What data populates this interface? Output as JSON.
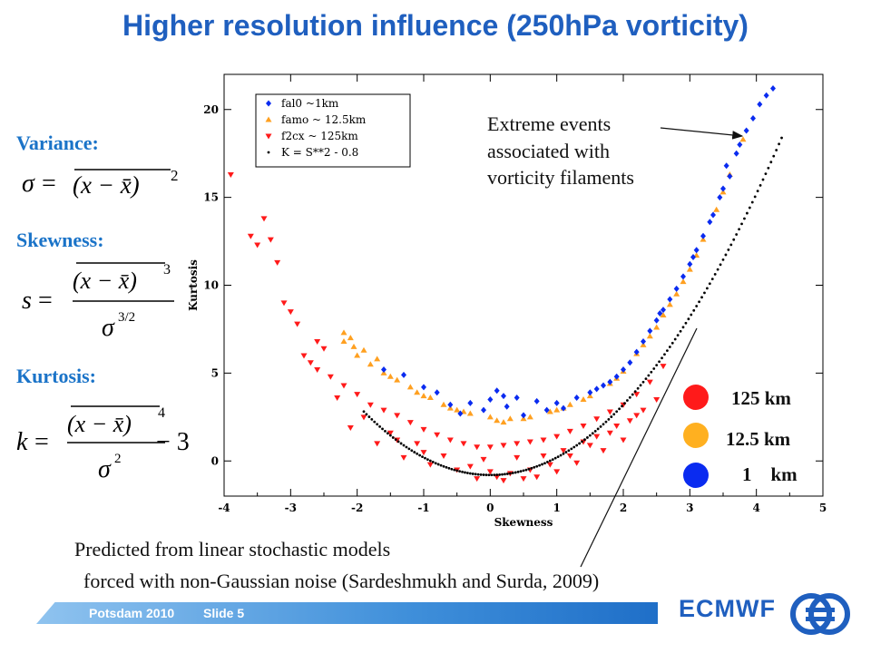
{
  "slide": {
    "title": "Higher resolution influence (250hPa vorticity)",
    "variance_label": "Variance:",
    "skewness_label": "Skewness:",
    "kurtosis_label": "Kurtosis:",
    "formulas": {
      "variance": {
        "lhs": "σ",
        "eq": "=",
        "body": "(x − x̄)",
        "exp": "2"
      },
      "skewness": {
        "lhs": "s",
        "eq": "=",
        "num": "(x − x̄)",
        "num_exp": "3",
        "den": "σ",
        "den_exp": "3/2"
      },
      "kurtosis": {
        "lhs": "k",
        "eq": "=",
        "num": "(x − x̄)",
        "num_exp": "4",
        "den": "σ",
        "den_exp": "2",
        "tail": "− 3"
      }
    },
    "annotation": [
      "Extreme events",
      "associated with",
      "vorticity filaments"
    ],
    "prediction": [
      "Predicted from linear stochastic models",
      "forced with non-Gaussian noise (Sardeshmukh and Surda, 2009)"
    ],
    "resolution_legend": [
      {
        "label": "125 km",
        "color": "#ff1a1a"
      },
      {
        "label": "12.5 km",
        "color": "#ffb020"
      },
      {
        "label": "1    km",
        "color": "#0a2bf0"
      }
    ],
    "footer": {
      "left": "Potsdam 2010",
      "right": "Slide 5",
      "logo": "ECMWF"
    },
    "colors": {
      "title": "#1f5fbf",
      "labels": "#1a73c8"
    }
  },
  "chart_data": {
    "type": "scatter",
    "xlabel": "Skewness",
    "ylabel": "Kurtosis",
    "xlim": [
      -4,
      5
    ],
    "ylim": [
      -2,
      22
    ],
    "xticks": [
      -4,
      -3,
      -2,
      -1,
      0,
      1,
      2,
      3,
      4,
      5
    ],
    "yticks": [
      0,
      5,
      10,
      15,
      20
    ],
    "legend_position": "top-left",
    "series": [
      {
        "name": "fal0 ~1km",
        "color": "#0a2bf0",
        "marker": "diamond",
        "points": [
          [
            4.25,
            21.2
          ],
          [
            4.05,
            20.3
          ],
          [
            3.85,
            18.8
          ],
          [
            3.7,
            17.5
          ],
          [
            3.6,
            16.2
          ],
          [
            3.45,
            15.0
          ],
          [
            3.3,
            13.6
          ],
          [
            3.1,
            12.0
          ],
          [
            2.9,
            10.5
          ],
          [
            2.7,
            9.2
          ],
          [
            2.5,
            8.0
          ],
          [
            2.3,
            6.8
          ],
          [
            2.1,
            5.6
          ],
          [
            1.9,
            4.8
          ],
          [
            1.6,
            4.1
          ],
          [
            1.3,
            3.6
          ],
          [
            1.0,
            3.3
          ],
          [
            0.7,
            3.4
          ],
          [
            0.4,
            3.6
          ],
          [
            0.2,
            3.7
          ],
          [
            0.0,
            3.5
          ],
          [
            -0.3,
            3.3
          ],
          [
            -0.6,
            3.2
          ],
          [
            -1.0,
            4.2
          ],
          [
            -1.3,
            4.9
          ],
          [
            -1.6,
            5.2
          ],
          [
            3.95,
            19.5
          ],
          [
            3.75,
            18.0
          ],
          [
            3.5,
            15.5
          ],
          [
            3.2,
            12.8
          ],
          [
            3.0,
            11.2
          ],
          [
            2.6,
            8.6
          ],
          [
            2.4,
            7.4
          ],
          [
            2.0,
            5.2
          ],
          [
            1.8,
            4.5
          ],
          [
            1.1,
            3.0
          ],
          [
            0.5,
            2.6
          ],
          [
            -0.1,
            2.9
          ],
          [
            -0.8,
            3.9
          ],
          [
            3.35,
            14.0
          ],
          [
            2.8,
            9.8
          ],
          [
            2.2,
            6.2
          ],
          [
            1.5,
            3.9
          ],
          [
            0.85,
            2.9
          ],
          [
            0.25,
            3.1
          ],
          [
            -0.45,
            2.7
          ],
          [
            4.15,
            20.8
          ],
          [
            3.55,
            16.8
          ],
          [
            3.05,
            11.6
          ],
          [
            2.55,
            8.4
          ],
          [
            1.7,
            4.3
          ],
          [
            0.1,
            4.0
          ]
        ]
      },
      {
        "name": "famo ~ 12.5km",
        "color": "#ffa020",
        "marker": "triangle",
        "points": [
          [
            3.8,
            18.3
          ],
          [
            3.5,
            15.3
          ],
          [
            3.2,
            12.6
          ],
          [
            3.0,
            10.9
          ],
          [
            2.8,
            9.5
          ],
          [
            2.6,
            8.3
          ],
          [
            2.4,
            7.1
          ],
          [
            2.2,
            6.1
          ],
          [
            2.0,
            5.1
          ],
          [
            1.8,
            4.4
          ],
          [
            1.5,
            3.7
          ],
          [
            1.2,
            3.2
          ],
          [
            0.9,
            2.8
          ],
          [
            0.6,
            2.5
          ],
          [
            0.3,
            2.4
          ],
          [
            0.0,
            2.5
          ],
          [
            -0.3,
            2.7
          ],
          [
            -0.6,
            3.0
          ],
          [
            -0.9,
            3.6
          ],
          [
            -1.2,
            4.2
          ],
          [
            -1.5,
            4.8
          ],
          [
            -1.8,
            5.5
          ],
          [
            -2.0,
            6.0
          ],
          [
            -2.2,
            6.8
          ],
          [
            -2.1,
            7.0
          ],
          [
            -1.9,
            6.3
          ],
          [
            -1.7,
            5.8
          ],
          [
            -1.4,
            4.6
          ],
          [
            -1.1,
            3.9
          ],
          [
            -0.7,
            3.2
          ],
          [
            -0.4,
            2.8
          ],
          [
            0.1,
            2.3
          ],
          [
            0.5,
            2.4
          ],
          [
            1.0,
            2.9
          ],
          [
            1.4,
            3.5
          ],
          [
            2.3,
            6.6
          ],
          [
            2.7,
            8.9
          ],
          [
            3.1,
            11.7
          ],
          [
            3.4,
            14.3
          ],
          [
            3.6,
            16.3
          ],
          [
            -2.2,
            7.3
          ],
          [
            -2.05,
            6.5
          ],
          [
            -1.6,
            5.0
          ],
          [
            2.9,
            10.2
          ],
          [
            2.5,
            7.6
          ],
          [
            1.9,
            4.7
          ],
          [
            1.1,
            3.0
          ],
          [
            0.2,
            2.2
          ],
          [
            -0.5,
            2.9
          ],
          [
            -1.0,
            3.7
          ]
        ]
      },
      {
        "name": "f2cx ~ 125km",
        "color": "#ff1a1a",
        "marker": "triangle-down",
        "points": [
          [
            -3.9,
            16.3
          ],
          [
            -3.4,
            13.8
          ],
          [
            -3.3,
            12.6
          ],
          [
            -3.5,
            12.3
          ],
          [
            -3.2,
            11.3
          ],
          [
            -3.1,
            9.0
          ],
          [
            -2.9,
            7.8
          ],
          [
            -3.0,
            8.5
          ],
          [
            -2.8,
            6.0
          ],
          [
            -2.6,
            5.2
          ],
          [
            -2.4,
            4.8
          ],
          [
            -2.2,
            4.3
          ],
          [
            -2.0,
            3.8
          ],
          [
            -1.8,
            3.2
          ],
          [
            -1.6,
            2.9
          ],
          [
            -1.4,
            2.6
          ],
          [
            -1.2,
            2.2
          ],
          [
            -1.0,
            1.8
          ],
          [
            -0.8,
            1.5
          ],
          [
            -0.6,
            1.2
          ],
          [
            -0.4,
            1.0
          ],
          [
            -0.2,
            0.8
          ],
          [
            0.0,
            0.8
          ],
          [
            0.2,
            0.9
          ],
          [
            0.4,
            1.0
          ],
          [
            0.6,
            1.1
          ],
          [
            0.8,
            1.2
          ],
          [
            1.0,
            1.4
          ],
          [
            1.2,
            1.7
          ],
          [
            1.4,
            2.0
          ],
          [
            1.6,
            2.4
          ],
          [
            1.8,
            2.8
          ],
          [
            2.0,
            3.2
          ],
          [
            2.2,
            3.8
          ],
          [
            2.4,
            4.5
          ],
          [
            2.6,
            5.4
          ],
          [
            -2.5,
            6.4
          ],
          [
            -2.7,
            5.6
          ],
          [
            -2.3,
            3.6
          ],
          [
            -1.9,
            2.5
          ],
          [
            -1.5,
            1.6
          ],
          [
            -1.1,
            1.0
          ],
          [
            -0.7,
            0.3
          ],
          [
            -0.3,
            -0.3
          ],
          [
            0.0,
            -0.6
          ],
          [
            0.3,
            -0.7
          ],
          [
            0.6,
            -0.5
          ],
          [
            0.9,
            -0.2
          ],
          [
            1.2,
            0.3
          ],
          [
            1.5,
            0.9
          ],
          [
            1.8,
            1.6
          ],
          [
            2.1,
            2.3
          ],
          [
            2.3,
            2.9
          ],
          [
            -1.3,
            0.2
          ],
          [
            -0.9,
            -0.2
          ],
          [
            -0.5,
            -0.5
          ],
          [
            0.1,
            -0.9
          ],
          [
            0.5,
            -1.0
          ],
          [
            1.0,
            -0.6
          ],
          [
            1.3,
            -0.1
          ],
          [
            1.7,
            0.6
          ],
          [
            2.0,
            1.2
          ],
          [
            2.5,
            3.5
          ],
          [
            -2.1,
            1.9
          ],
          [
            -1.7,
            1.0
          ],
          [
            -0.1,
            0.1
          ],
          [
            0.4,
            0.2
          ],
          [
            0.8,
            0.3
          ],
          [
            1.1,
            0.6
          ],
          [
            1.4,
            1.1
          ],
          [
            -0.2,
            -1.0
          ],
          [
            0.2,
            -1.1
          ],
          [
            0.7,
            -0.9
          ],
          [
            -1.0,
            0.5
          ],
          [
            -1.4,
            1.2
          ],
          [
            1.6,
            1.4
          ],
          [
            1.9,
            2.0
          ],
          [
            2.2,
            2.6
          ],
          [
            -3.6,
            12.8
          ],
          [
            -2.6,
            6.8
          ]
        ]
      },
      {
        "name": "K = S**2 - 0.8",
        "color": "#000000",
        "marker": "dot",
        "curve": "K = S^2 - 0.8",
        "x_range": [
          -1.9,
          4.4
        ]
      }
    ]
  }
}
